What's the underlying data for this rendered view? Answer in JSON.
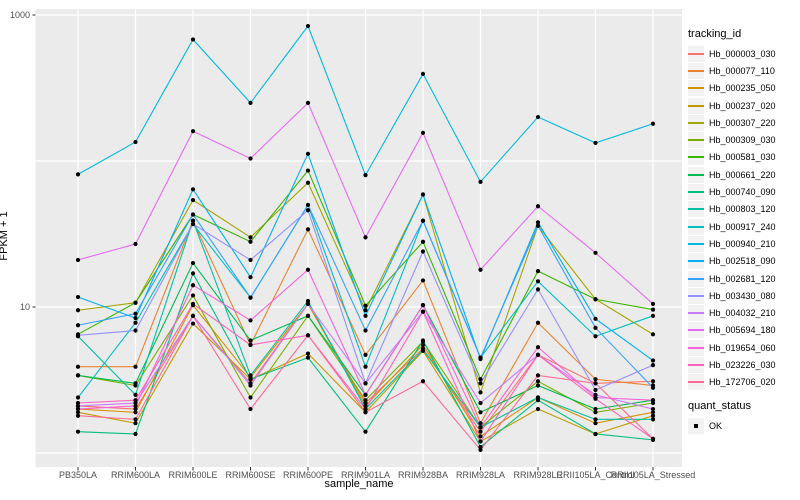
{
  "chart_data": {
    "type": "line",
    "title": "",
    "xlabel": "sample_name",
    "ylabel": "FPKM + 1",
    "y_scale": "log10",
    "ylim": [
      0.8,
      1100
    ],
    "y_tick_labels": [
      {
        "value": 1000,
        "label": "1000"
      },
      {
        "value": 10,
        "label": "10"
      }
    ],
    "y_gridlines": [
      1000,
      100,
      10,
      1
    ],
    "grid": "on",
    "panel_bg": "#ebebeb",
    "gridline_color": "#ffffff",
    "point_color": "#000000",
    "legend_position": "right",
    "categories": [
      "PB350LA",
      "RRIM600LA",
      "RRIM600LE",
      "RRIM600SE",
      "RRIM600PE",
      "RRIM901LA",
      "RRIM928BA",
      "RRIM928LA",
      "RRIM928LE",
      "RRII105LA_Control",
      "RRII105LA_Stressed"
    ],
    "series": [
      {
        "name": "Hb_000003_030",
        "color": "#F8766D",
        "values": [
          2.1,
          2.0,
          8.7,
          3.0,
          10.5,
          2.2,
          5.2,
          1.4,
          4.7,
          3.0,
          3.1
        ]
      },
      {
        "name": "Hb_000077_110",
        "color": "#EA8331",
        "values": [
          3.9,
          3.9,
          39,
          5.5,
          34,
          4.7,
          15.2,
          1.6,
          7.8,
          3.2,
          2.9
        ]
      },
      {
        "name": "Hb_000235_050",
        "color": "#D89000",
        "values": [
          2.0,
          1.9,
          10.3,
          3.3,
          10.5,
          2.1,
          5.5,
          1.3,
          2.4,
          1.6,
          1.9
        ]
      },
      {
        "name": "Hb_000237_020",
        "color": "#C09B00",
        "values": [
          1.9,
          1.6,
          7.7,
          3.2,
          4.8,
          1.9,
          5.0,
          1.2,
          2.0,
          1.35,
          1.8
        ]
      },
      {
        "name": "Hb_000307_220",
        "color": "#A3A500",
        "values": [
          9.5,
          10.7,
          54,
          30,
          71,
          9.5,
          59,
          2.6,
          36,
          11.3,
          6.5
        ]
      },
      {
        "name": "Hb_000309_030",
        "color": "#7CAE00",
        "values": [
          3.4,
          2.9,
          12,
          2.4,
          8.7,
          2.3,
          5.8,
          1.5,
          3.1,
          1.9,
          2.2
        ]
      },
      {
        "name": "Hb_000581_030",
        "color": "#39B600",
        "values": [
          6.5,
          10.7,
          43,
          28,
          86,
          10.2,
          28,
          3.2,
          17.6,
          11.3,
          9.6
        ]
      },
      {
        "name": "Hb_000661_220",
        "color": "#00BB4E",
        "values": [
          3.4,
          3.0,
          20,
          5.9,
          8.7,
          2.5,
          10.3,
          1.9,
          2.9,
          2.0,
          2.3
        ]
      },
      {
        "name": "Hb_000740_090",
        "color": "#00BF7D",
        "values": [
          1.4,
          1.35,
          17,
          3.2,
          4.5,
          1.4,
          5.9,
          1.1,
          2.3,
          1.35,
          1.23
        ]
      },
      {
        "name": "Hb_000803_120",
        "color": "#00C1A3",
        "values": [
          6.3,
          2.5,
          39,
          3.4,
          11,
          2.0,
          5.1,
          1.5,
          2.4,
          1.7,
          1.7
        ]
      },
      {
        "name": "Hb_000917_240",
        "color": "#00BFC4",
        "values": [
          2.4,
          7.8,
          37,
          11.6,
          50,
          3.9,
          39,
          4.5,
          15,
          6.3,
          8.7
        ]
      },
      {
        "name": "Hb_000940_210",
        "color": "#00BAE0",
        "values": [
          81,
          135,
          680,
          250,
          840,
          80,
          395,
          72,
          200,
          133,
          180
        ]
      },
      {
        "name": "Hb_002518_090",
        "color": "#00B0F6",
        "values": [
          11.7,
          8.4,
          64,
          16,
          112,
          8.7,
          59,
          4.4,
          38,
          8.3,
          4.3
        ]
      },
      {
        "name": "Hb_002681_120",
        "color": "#35A2FF",
        "values": [
          7.5,
          9.0,
          43,
          11.6,
          50,
          6.9,
          39,
          4.5,
          36,
          7.2,
          2.8
        ]
      },
      {
        "name": "Hb_003430_080",
        "color": "#9590FF",
        "values": [
          6.4,
          6.9,
          37,
          21,
          46,
          3.0,
          24,
          3.0,
          13.2,
          2.7,
          4.0
        ]
      },
      {
        "name": "Hb_004032_210",
        "color": "#C77CFF",
        "values": [
          2.1,
          2.2,
          8.7,
          2.9,
          10.5,
          3.0,
          9.3,
          2.2,
          4.7,
          2.5,
          2.0
        ]
      },
      {
        "name": "Hb_005694_180",
        "color": "#E76BF3",
        "values": [
          21,
          27,
          160,
          104,
          250,
          30,
          156,
          18,
          49,
          23.5,
          10.5
        ]
      },
      {
        "name": "Hb_019654_060",
        "color": "#FA62DB",
        "values": [
          2.0,
          2.1,
          14.1,
          8.1,
          18,
          2.5,
          10.3,
          1.5,
          5.3,
          2.4,
          2.3
        ]
      },
      {
        "name": "Hb_023226_030",
        "color": "#FF62BC",
        "values": [
          2.2,
          2.3,
          10.5,
          5.5,
          6.4,
          2.0,
          9.3,
          1.2,
          4.7,
          2.35,
          1.25
        ]
      },
      {
        "name": "Hb_172706_020",
        "color": "#FF6A98",
        "values": [
          1.8,
          1.7,
          8.7,
          2.0,
          6.4,
          1.9,
          3.1,
          1.05,
          3.4,
          3.0,
          1.25
        ]
      }
    ]
  },
  "legend": {
    "tracking_title": "tracking_id",
    "quant_title": "quant_status",
    "quant_items": [
      {
        "label": "OK",
        "shape": "square",
        "color": "#000000"
      }
    ]
  },
  "axes": {
    "x_title": "sample_name",
    "y_title": "FPKM + 1"
  }
}
